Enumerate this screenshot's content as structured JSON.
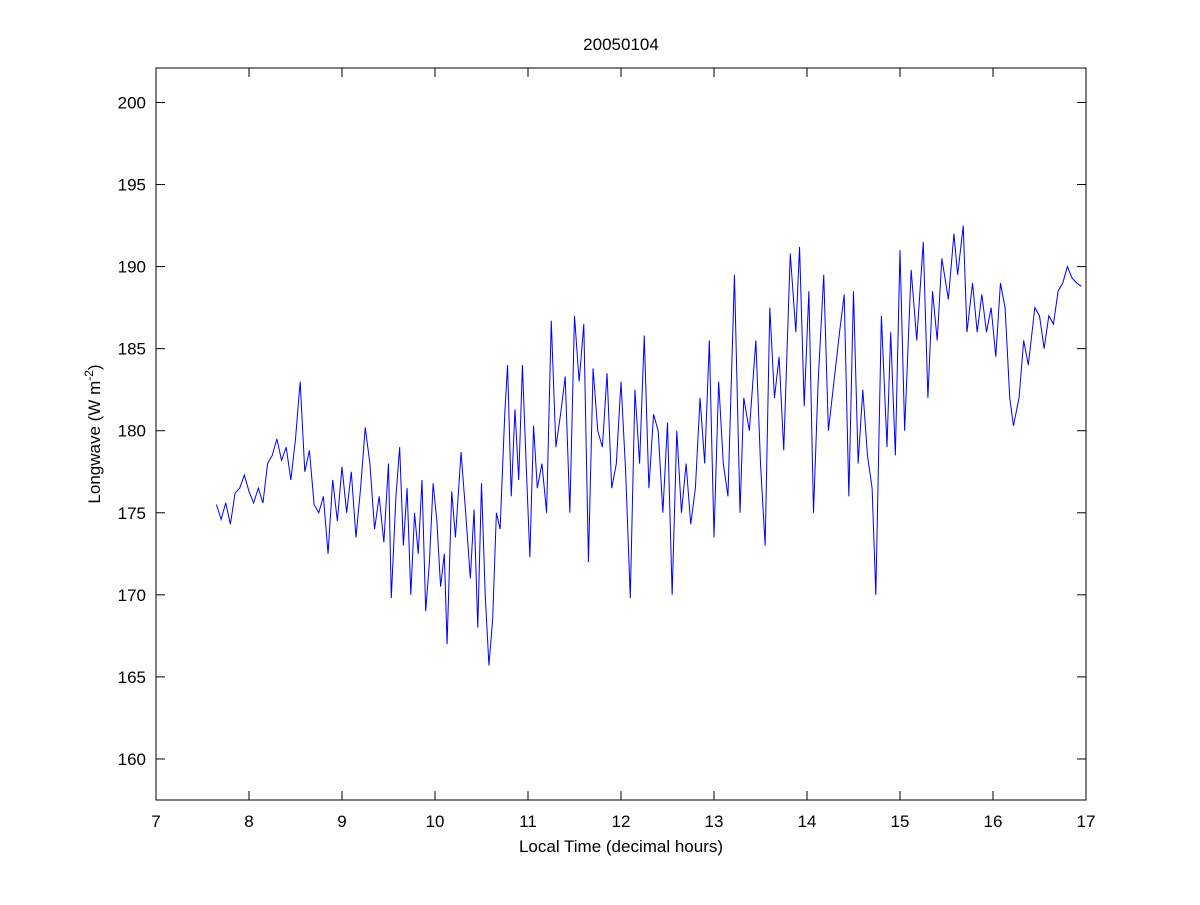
{
  "chart_data": {
    "type": "line",
    "title": "20050104",
    "xlabel": "Local Time (decimal hours)",
    "ylabel": {
      "text": "Longwave (W m",
      "superscript": "-2",
      "suffix": ")"
    },
    "x": [
      7.65,
      7.7,
      7.75,
      7.8,
      7.85,
      7.9,
      7.95,
      8.0,
      8.05,
      8.1,
      8.15,
      8.2,
      8.25,
      8.3,
      8.35,
      8.4,
      8.45,
      8.5,
      8.55,
      8.6,
      8.65,
      8.7,
      8.75,
      8.8,
      8.85,
      8.9,
      8.95,
      9.0,
      9.05,
      9.1,
      9.15,
      9.2,
      9.25,
      9.3,
      9.35,
      9.4,
      9.45,
      9.5,
      9.53,
      9.58,
      9.62,
      9.66,
      9.7,
      9.74,
      9.78,
      9.82,
      9.86,
      9.9,
      9.94,
      9.98,
      10.02,
      10.06,
      10.1,
      10.13,
      10.18,
      10.22,
      10.28,
      10.33,
      10.38,
      10.42,
      10.46,
      10.5,
      10.54,
      10.58,
      10.62,
      10.66,
      10.7,
      10.75,
      10.78,
      10.82,
      10.86,
      10.9,
      10.94,
      10.98,
      11.02,
      11.06,
      11.1,
      11.15,
      11.2,
      11.25,
      11.3,
      11.35,
      11.4,
      11.45,
      11.5,
      11.55,
      11.6,
      11.65,
      11.7,
      11.75,
      11.8,
      11.85,
      11.9,
      11.95,
      12.0,
      12.05,
      12.1,
      12.15,
      12.2,
      12.25,
      12.3,
      12.35,
      12.4,
      12.45,
      12.5,
      12.55,
      12.6,
      12.65,
      12.7,
      12.75,
      12.8,
      12.85,
      12.9,
      12.95,
      13.0,
      13.05,
      13.1,
      13.15,
      13.22,
      13.28,
      13.32,
      13.38,
      13.45,
      13.5,
      13.55,
      13.6,
      13.65,
      13.7,
      13.75,
      13.82,
      13.88,
      13.92,
      13.97,
      14.02,
      14.07,
      14.12,
      14.18,
      14.23,
      14.3,
      14.35,
      14.4,
      14.45,
      14.5,
      14.55,
      14.6,
      14.65,
      14.7,
      14.74,
      14.8,
      14.86,
      14.9,
      14.95,
      15.0,
      15.05,
      15.12,
      15.18,
      15.25,
      15.3,
      15.35,
      15.4,
      15.45,
      15.52,
      15.58,
      15.62,
      15.68,
      15.72,
      15.78,
      15.83,
      15.88,
      15.93,
      15.98,
      16.03,
      16.08,
      16.13,
      16.18,
      16.22,
      16.28,
      16.33,
      16.38,
      16.45,
      16.5,
      16.55,
      16.6,
      16.65,
      16.7,
      16.75,
      16.8,
      16.85,
      16.9,
      16.95
    ],
    "values": [
      175.5,
      174.6,
      175.6,
      174.3,
      176.2,
      176.5,
      177.3,
      176.3,
      175.6,
      176.5,
      175.6,
      178.0,
      178.5,
      179.5,
      178.2,
      179.0,
      177.0,
      179.5,
      183.0,
      177.5,
      178.8,
      175.5,
      175.0,
      176.0,
      172.5,
      177.0,
      174.5,
      177.8,
      175.0,
      177.5,
      173.5,
      176.5,
      180.2,
      178.0,
      174.0,
      176.0,
      173.2,
      178.0,
      169.8,
      176.0,
      179.0,
      173.0,
      176.5,
      170.0,
      175.0,
      172.5,
      177.0,
      169.0,
      172.0,
      176.8,
      174.5,
      170.5,
      172.5,
      167.0,
      176.3,
      173.5,
      178.7,
      175.0,
      171.0,
      175.2,
      168.0,
      176.8,
      170.0,
      165.7,
      168.5,
      175.0,
      174.0,
      181.0,
      184.0,
      176.0,
      181.3,
      177.0,
      184.0,
      178.0,
      172.3,
      180.3,
      176.5,
      178.0,
      175.0,
      186.7,
      179.0,
      181.0,
      183.3,
      175.0,
      187.0,
      183.0,
      186.5,
      172.0,
      183.8,
      180.0,
      179.0,
      183.5,
      176.5,
      178.0,
      183.0,
      177.5,
      169.8,
      182.5,
      178.0,
      185.8,
      176.5,
      181.0,
      180.0,
      175.0,
      180.5,
      170.0,
      180.0,
      175.0,
      178.0,
      174.3,
      176.5,
      182.0,
      178.0,
      185.5,
      173.5,
      183.0,
      178.0,
      176.0,
      189.5,
      175.0,
      182.0,
      180.0,
      185.5,
      178.0,
      173.0,
      187.5,
      182.0,
      184.5,
      178.8,
      190.8,
      186.0,
      191.2,
      181.5,
      188.5,
      175.0,
      183.0,
      189.5,
      180.0,
      183.5,
      186.0,
      188.3,
      176.0,
      188.5,
      178.0,
      182.5,
      178.5,
      176.5,
      170.0,
      187.0,
      179.0,
      186.0,
      178.5,
      191.0,
      180.0,
      189.8,
      185.5,
      191.5,
      182.0,
      188.5,
      185.5,
      190.5,
      188.0,
      192.0,
      189.5,
      192.5,
      186.0,
      189.0,
      186.0,
      188.3,
      186.0,
      187.5,
      184.5,
      189.0,
      187.5,
      182.0,
      180.3,
      182.0,
      185.5,
      184.0,
      187.5,
      187.0,
      185.0,
      187.0,
      186.5,
      188.5,
      189.0,
      190.0,
      189.3,
      189.0,
      188.8
    ],
    "color": "#0000ff",
    "xlim": [
      7,
      17
    ],
    "xticks": [
      7,
      8,
      9,
      10,
      11,
      12,
      13,
      14,
      15,
      16,
      17
    ],
    "ylim": [
      157.5,
      202.1
    ],
    "yticks": [
      160,
      165,
      170,
      175,
      180,
      185,
      190,
      195,
      200
    ]
  }
}
